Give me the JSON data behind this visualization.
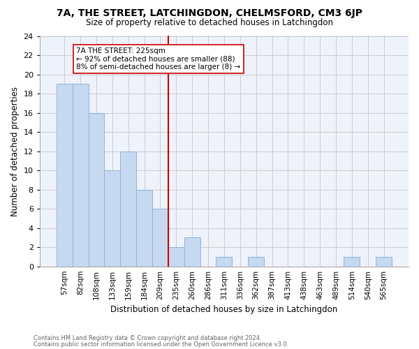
{
  "title": "7A, THE STREET, LATCHINGDON, CHELMSFORD, CM3 6JP",
  "subtitle": "Size of property relative to detached houses in Latchingdon",
  "xlabel": "Distribution of detached houses by size in Latchingdon",
  "ylabel": "Number of detached properties",
  "bar_labels": [
    "57sqm",
    "82sqm",
    "108sqm",
    "133sqm",
    "159sqm",
    "184sqm",
    "209sqm",
    "235sqm",
    "260sqm",
    "286sqm",
    "311sqm",
    "336sqm",
    "362sqm",
    "387sqm",
    "413sqm",
    "438sqm",
    "463sqm",
    "489sqm",
    "514sqm",
    "540sqm",
    "565sqm"
  ],
  "bar_values": [
    19,
    19,
    16,
    10,
    12,
    8,
    6,
    2,
    3,
    0,
    1,
    0,
    1,
    0,
    0,
    0,
    0,
    0,
    1,
    0,
    1
  ],
  "bar_color": "#c6d9f0",
  "bar_edge_color": "#8db4d9",
  "grid_color": "#cccccc",
  "background_color": "#ffffff",
  "plot_bg_color": "#eef2fa",
  "annotation_text": "7A THE STREET: 225sqm\n← 92% of detached houses are smaller (88)\n8% of semi-detached houses are larger (8) →",
  "ref_line_color": "#cc0000",
  "ylim": [
    0,
    24
  ],
  "yticks": [
    0,
    2,
    4,
    6,
    8,
    10,
    12,
    14,
    16,
    18,
    20,
    22,
    24
  ],
  "footnote1": "Contains HM Land Registry data © Crown copyright and database right 2024.",
  "footnote2": "Contains public sector information licensed under the Open Government Licence v3.0."
}
